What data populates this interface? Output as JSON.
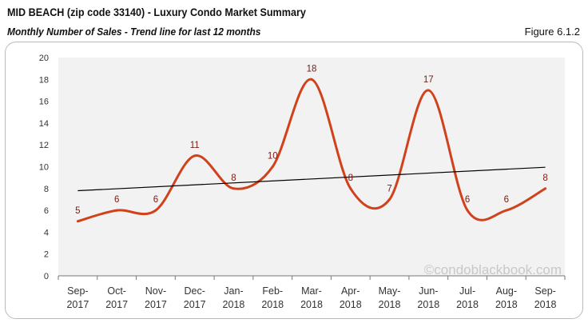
{
  "header": {
    "title": "MID BEACH (zip code 33140) - Luxury Condo Market Summary",
    "subtitle": "Monthly Number of Sales - Trend line for last 12 months",
    "figure": "Figure 6.1.2"
  },
  "watermark": "©condoblackbook.com",
  "chart_data": {
    "type": "line",
    "categories": [
      [
        "Sep-",
        "2017"
      ],
      [
        "Oct-",
        "2017"
      ],
      [
        "Nov-",
        "2017"
      ],
      [
        "Dec-",
        "2017"
      ],
      [
        "Jan-",
        "2018"
      ],
      [
        "Feb-",
        "2018"
      ],
      [
        "Mar-",
        "2018"
      ],
      [
        "Apr-",
        "2018"
      ],
      [
        "May-",
        "2018"
      ],
      [
        "Jun-",
        "2018"
      ],
      [
        "Jul-",
        "2018"
      ],
      [
        "Aug-",
        "2018"
      ],
      [
        "Sep-",
        "2018"
      ]
    ],
    "values": [
      5,
      6,
      6,
      11,
      8,
      10,
      18,
      8,
      7,
      17,
      6,
      6,
      8
    ],
    "trendline": {
      "start": 7.8,
      "end": 9.95
    },
    "ylim": [
      0,
      20
    ],
    "yticks": [
      0,
      2,
      4,
      6,
      8,
      10,
      12,
      14,
      16,
      18,
      20
    ],
    "smooth": true,
    "grid": false,
    "colors": {
      "line": "#d0421b",
      "label": "#7a1a10",
      "trend": "#000000",
      "plot_bg": "#f2f2f2"
    }
  }
}
